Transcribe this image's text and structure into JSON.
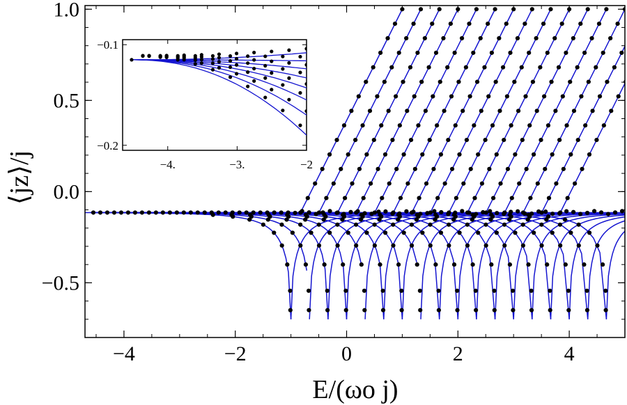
{
  "chart_data": [
    {
      "id": "main",
      "type": "scatter",
      "title": "",
      "xlabel": "E/(ωo j)",
      "ylabel": "⟨jz⟩/j",
      "xlim": [
        -4.7,
        5.0
      ],
      "ylim": [
        -0.8,
        1.02
      ],
      "xticks": [
        -4,
        -2,
        0,
        2,
        4
      ],
      "xtick_labels": [
        "−4",
        "−2",
        "0",
        "2",
        "4"
      ],
      "yticks": [
        -0.5,
        0.0,
        0.5,
        1.0
      ],
      "ytick_labels": [
        "−0.5",
        "0.0",
        "0.5",
        "1.0"
      ],
      "grid": false,
      "colors": {
        "points": "#000000",
        "curves": "#1515d0",
        "frame": "#000000"
      },
      "points": {
        "series_marker": "dot",
        "baseline_y": -0.115
      },
      "families": [
        {
          "kind": "lower",
          "e0": -1.0
        },
        {
          "kind": "lower",
          "e0": -0.667
        },
        {
          "kind": "lower",
          "e0": -0.333
        },
        {
          "kind": "lower",
          "e0": 0.0
        },
        {
          "kind": "lower",
          "e0": 0.333
        },
        {
          "kind": "lower",
          "e0": 0.667
        },
        {
          "kind": "lower",
          "e0": 1.0
        },
        {
          "kind": "lower",
          "e0": 1.333
        },
        {
          "kind": "lower",
          "e0": 1.667
        },
        {
          "kind": "lower",
          "e0": 2.0
        },
        {
          "kind": "lower",
          "e0": 2.333
        },
        {
          "kind": "lower",
          "e0": 2.667
        },
        {
          "kind": "lower",
          "e0": 3.0
        },
        {
          "kind": "lower",
          "e0": 3.333
        },
        {
          "kind": "lower",
          "e0": 3.667
        },
        {
          "kind": "lower",
          "e0": 4.0
        },
        {
          "kind": "lower",
          "e0": 4.333
        },
        {
          "kind": "lower",
          "e0": 4.667
        },
        {
          "kind": "upper",
          "e_top": 1.0
        },
        {
          "kind": "upper",
          "e_top": 1.333
        },
        {
          "kind": "upper",
          "e_top": 1.667
        },
        {
          "kind": "upper",
          "e_top": 2.0
        },
        {
          "kind": "upper",
          "e_top": 2.333
        },
        {
          "kind": "upper",
          "e_top": 2.667
        },
        {
          "kind": "upper",
          "e_top": 3.0
        },
        {
          "kind": "upper",
          "e_top": 3.333
        },
        {
          "kind": "upper",
          "e_top": 3.667
        },
        {
          "kind": "upper",
          "e_top": 4.0
        },
        {
          "kind": "upper",
          "e_top": 4.333
        },
        {
          "kind": "upper",
          "e_top": 4.667
        },
        {
          "kind": "upper",
          "e_top": 5.0
        },
        {
          "kind": "upper",
          "e_top": 5.333
        },
        {
          "kind": "upper",
          "e_top": 5.667
        }
      ],
      "upper_curve": {
        "slope": 0.61,
        "start_y": -0.115
      },
      "lower_curve": {
        "min_y": -0.7,
        "shape_exponent": 0.5
      }
    },
    {
      "id": "inset",
      "type": "scatter",
      "title": "",
      "xlabel": "",
      "ylabel": "",
      "xlim": [
        -4.65,
        -2.0
      ],
      "ylim": [
        -0.205,
        -0.095
      ],
      "xticks": [
        -4,
        -3,
        -2
      ],
      "xtick_labels": [
        "−4.",
        "−3.",
        "−2"
      ],
      "yticks": [
        -0.2,
        -0.1
      ],
      "ytick_labels": [
        "−0.2",
        "−0.1"
      ],
      "grid": false,
      "curves": [
        {
          "end_y": -0.108
        },
        {
          "end_y": -0.116
        },
        {
          "end_y": -0.124
        },
        {
          "end_y": -0.133
        },
        {
          "end_y": -0.143
        },
        {
          "end_y": -0.155
        },
        {
          "end_y": -0.17
        },
        {
          "end_y": -0.19
        }
      ],
      "start": {
        "x": -4.52,
        "y": -0.115
      }
    }
  ]
}
